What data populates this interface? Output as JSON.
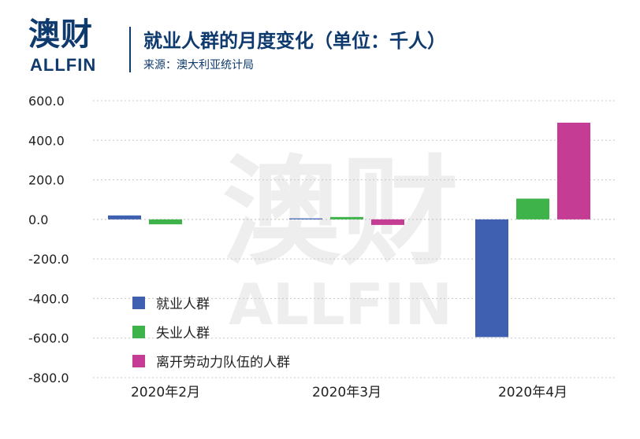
{
  "header": {
    "logo_cn": "澳财",
    "logo_en": "ALLFIN",
    "title": "就业人群的月度变化（单位：千人）",
    "source": "来源：澳大利亚统计局"
  },
  "watermark": {
    "cn": "澳财",
    "en": "ALLFIN"
  },
  "colors": {
    "brand": "#0e3a6e",
    "employed": "#3f5fb0",
    "unemployed": "#3db34a",
    "left_labour_force": "#c43c93",
    "grid": "#c8c8c8"
  },
  "chart_data": {
    "type": "bar",
    "categories": [
      "2020年2月",
      "2020年3月",
      "2020年4月"
    ],
    "series": [
      {
        "name": "就业人群",
        "values": [
          20,
          5,
          -595
        ]
      },
      {
        "name": "失业人群",
        "values": [
          -25,
          12,
          105
        ]
      },
      {
        "name": "离开劳动力队伍的人群",
        "values": [
          0,
          -28,
          489
        ]
      }
    ],
    "ylim": [
      -800,
      600
    ],
    "yticks": [
      600,
      400,
      200,
      0,
      -200,
      -400,
      -600,
      -800
    ],
    "ytick_labels": [
      "600.0",
      "400.0",
      "200.0",
      "0.0",
      "-200.0",
      "-400.0",
      "-600.0",
      "-800.0"
    ],
    "grid": "horizontal-dotted",
    "legend_position": "bottom-left"
  }
}
